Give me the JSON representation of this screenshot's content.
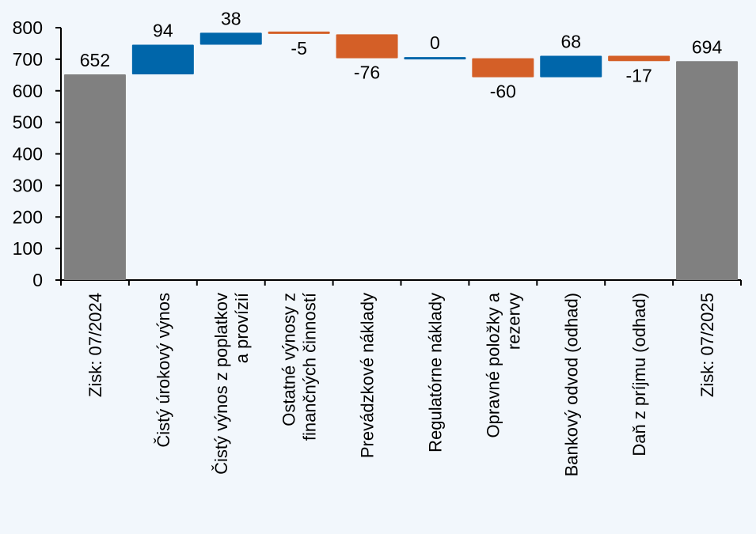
{
  "chart_data": {
    "type": "waterfall",
    "title": "",
    "xlabel": "",
    "ylabel": "",
    "ylim": [
      0,
      800
    ],
    "yticks": [
      0,
      100,
      200,
      300,
      400,
      500,
      600,
      700,
      800
    ],
    "grid": false,
    "categories": [
      [
        "Zisk: 07/2024"
      ],
      [
        "Čistý úrokový výnos"
      ],
      [
        "Čistý výnos z poplatkov",
        "a provízií"
      ],
      [
        "Ostatné výnosy z",
        "finančných činností"
      ],
      [
        "Prevádzkové náklady"
      ],
      [
        "Regulatórne náklady"
      ],
      [
        "Opravné položky a",
        "rezervy"
      ],
      [
        "Bankový odvod (odhad)"
      ],
      [
        "Daň z príjmu (odhad)"
      ],
      [
        "Zisk: 07/2025"
      ]
    ],
    "values": [
      652,
      94,
      38,
      -5,
      -76,
      0,
      -60,
      68,
      -17,
      694
    ],
    "kinds": [
      "total",
      "delta",
      "delta",
      "delta",
      "delta",
      "delta",
      "delta",
      "delta",
      "delta",
      "total"
    ],
    "labels": [
      "652",
      "94",
      "38",
      "-5",
      "-76",
      "0",
      "-60",
      "68",
      "-17",
      "694"
    ],
    "colors": {
      "total": "#808080",
      "increase": "#0066AA",
      "decrease": "#D45F27"
    }
  }
}
